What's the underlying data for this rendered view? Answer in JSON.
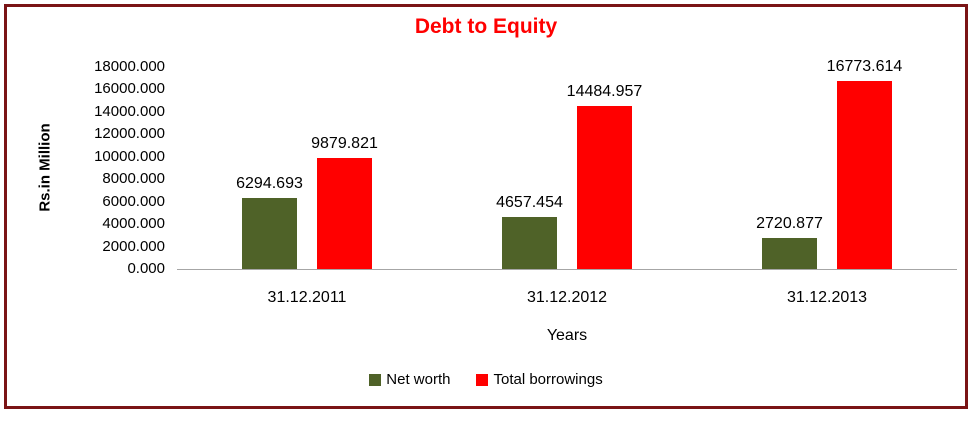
{
  "title": "Debt to Equity",
  "colors": {
    "title": "#ff0000",
    "net_worth": "#4f6228",
    "total_borrowings": "#ff0000",
    "frame_border": "#7a1416",
    "axis_line": "#a6a6a6"
  },
  "chart_data": {
    "type": "bar",
    "title": "Debt to Equity",
    "xlabel": "Years",
    "ylabel": "Rs.in Million",
    "categories": [
      "31.12.2011",
      "31.12.2012",
      "31.12.2013"
    ],
    "series": [
      {
        "name": "Net worth",
        "color": "#4f6228",
        "values": [
          6294.693,
          4657.454,
          2720.877
        ]
      },
      {
        "name": "Total borrowings",
        "color": "#ff0000",
        "values": [
          9879.821,
          14484.957,
          16773.614
        ]
      }
    ],
    "data_labels": [
      "6294.693",
      "4657.454",
      "2720.877",
      "9879.821",
      "14484.957",
      "16773.614"
    ],
    "ylim": [
      0,
      18000
    ],
    "ytick_step": 2000,
    "ytick_labels": [
      "0.000",
      "2000.000",
      "4000.000",
      "6000.000",
      "8000.000",
      "10000.000",
      "12000.000",
      "14000.000",
      "16000.000",
      "18000.000"
    ],
    "grid": false,
    "legend_position": "bottom"
  }
}
